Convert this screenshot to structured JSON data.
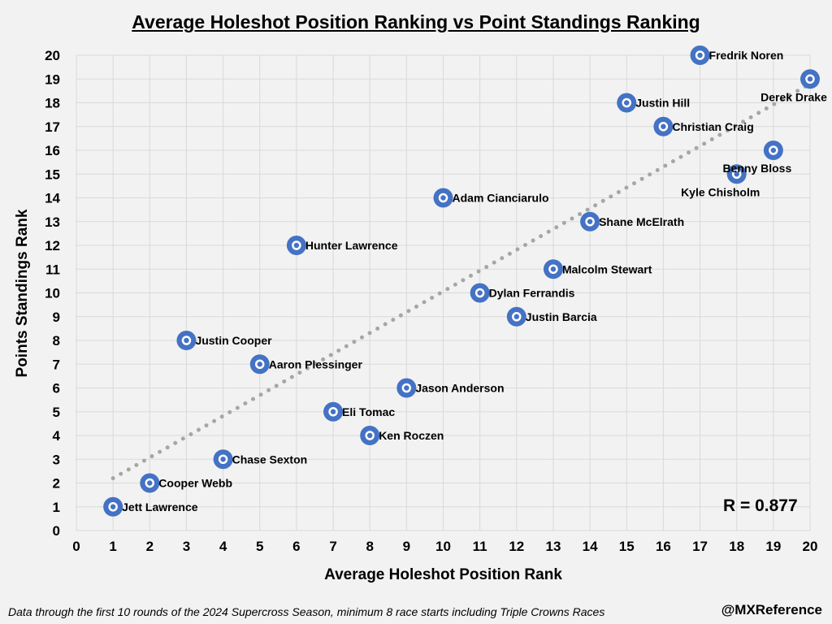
{
  "chart_data": {
    "type": "scatter",
    "title": "Average Holeshot Position Ranking vs Point Standings Ranking",
    "xlabel": "Average Holeshot Position Rank",
    "ylabel": "Points Standings Rank",
    "xlim": [
      0,
      20
    ],
    "ylim": [
      0,
      20
    ],
    "xticks": [
      0,
      1,
      2,
      3,
      4,
      5,
      6,
      7,
      8,
      9,
      10,
      11,
      12,
      13,
      14,
      15,
      16,
      17,
      18,
      19,
      20
    ],
    "yticks": [
      0,
      1,
      2,
      3,
      4,
      5,
      6,
      7,
      8,
      9,
      10,
      11,
      12,
      13,
      14,
      15,
      16,
      17,
      18,
      19,
      20
    ],
    "grid": true,
    "marker_color": "#4472c4",
    "trendline_color": "#a6a6a6",
    "trendline": {
      "x": [
        1,
        20
      ],
      "y": [
        2.2,
        18.8
      ],
      "style": "dotted"
    },
    "annotation": "R = 0.877",
    "points": [
      {
        "name": "Jett Lawrence",
        "x": 1,
        "y": 1
      },
      {
        "name": "Cooper Webb",
        "x": 2,
        "y": 2
      },
      {
        "name": "Chase Sexton",
        "x": 4,
        "y": 3
      },
      {
        "name": "Ken Roczen",
        "x": 8,
        "y": 4
      },
      {
        "name": "Eli Tomac",
        "x": 7,
        "y": 5
      },
      {
        "name": "Jason Anderson",
        "x": 9,
        "y": 6
      },
      {
        "name": "Aaron Plessinger",
        "x": 5,
        "y": 7
      },
      {
        "name": "Justin Cooper",
        "x": 3,
        "y": 8
      },
      {
        "name": "Justin Barcia",
        "x": 12,
        "y": 9
      },
      {
        "name": "Dylan Ferrandis",
        "x": 11,
        "y": 10
      },
      {
        "name": "Malcolm Stewart",
        "x": 13,
        "y": 11
      },
      {
        "name": "Hunter Lawrence",
        "x": 6,
        "y": 12
      },
      {
        "name": "Shane McElrath",
        "x": 14,
        "y": 13
      },
      {
        "name": "Adam Cianciarulo",
        "x": 10,
        "y": 14
      },
      {
        "name": "Kyle Chisholm",
        "x": 18,
        "y": 15,
        "label_pos": "below"
      },
      {
        "name": "Benny Bloss",
        "x": 19,
        "y": 16,
        "label_pos": "below"
      },
      {
        "name": "Christian Craig",
        "x": 16,
        "y": 17
      },
      {
        "name": "Justin Hill",
        "x": 15,
        "y": 18
      },
      {
        "name": "Derek Drake",
        "x": 20,
        "y": 19,
        "label_pos": "below"
      },
      {
        "name": "Fredrik Noren",
        "x": 17,
        "y": 20
      }
    ]
  },
  "footnote": "Data through the first 10 rounds of the 2024 Supercross Season, minimum 8 race starts including Triple Crowns Races",
  "handle": "@MXReference"
}
